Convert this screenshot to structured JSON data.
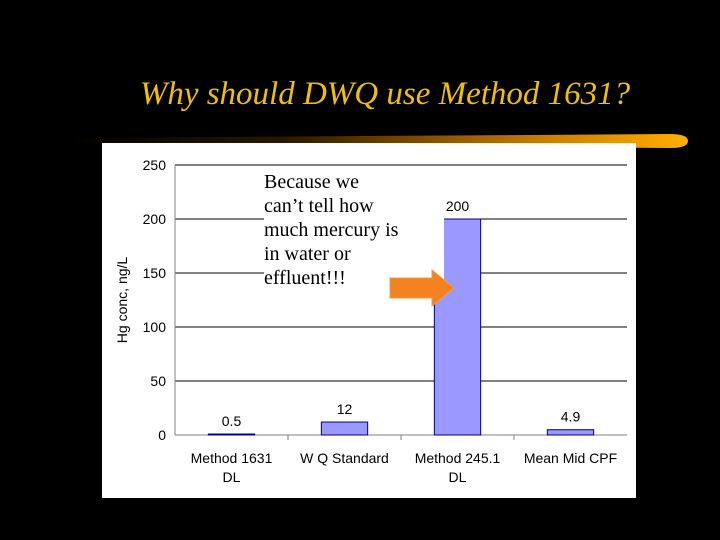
{
  "slide": {
    "title": "Why should DWQ use Method 1631?",
    "callout_lines": [
      "Because we",
      "can’t tell how",
      "much mercury is",
      "in water or",
      "effluent!!!"
    ],
    "colors": {
      "title": "#f0c000",
      "bar": "#9999ff",
      "arrow": "#f58220",
      "gridline": "#000000"
    }
  },
  "chart_data": {
    "type": "bar",
    "title": "",
    "xlabel": "",
    "ylabel": "Hg conc, ng/L",
    "ylim": [
      0,
      250
    ],
    "yticks": [
      0,
      50,
      100,
      150,
      200,
      250
    ],
    "grid": true,
    "categories": [
      [
        "Method 1631",
        "DL"
      ],
      [
        "W Q Standard"
      ],
      [
        "Method 245.1",
        "DL"
      ],
      [
        "Mean Mid CPF"
      ]
    ],
    "values": [
      0.5,
      12,
      200,
      4.9
    ],
    "data_labels": [
      "0.5",
      "12",
      "200",
      "4.9"
    ]
  }
}
